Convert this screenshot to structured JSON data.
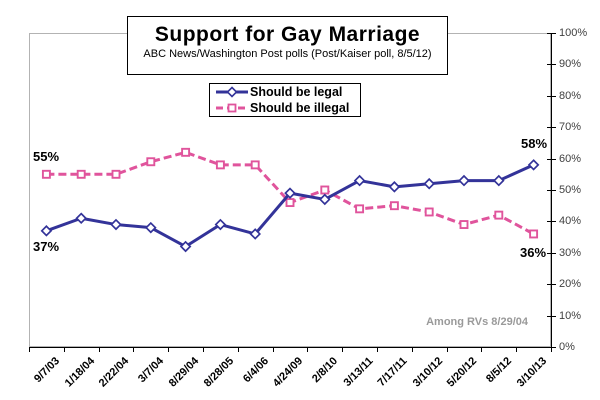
{
  "chart": {
    "title": "Support for Gay Marriage",
    "subtitle": "ABC News/Washington Post polls (Post/Kaiser poll, 8/5/12)"
  },
  "watermark": "Among RVs 8/29/04",
  "annotations": {
    "illegal_start": "55%",
    "legal_start": "37%",
    "legal_end": "58%",
    "illegal_end": "36%"
  },
  "chart_data": {
    "type": "line",
    "title": "Support for Gay Marriage",
    "subtitle": "ABC News/Washington Post polls (Post/Kaiser poll, 8/5/12)",
    "categories": [
      "9/7/03",
      "1/18/04",
      "2/22/04",
      "3/7/04",
      "8/29/04",
      "8/28/05",
      "6/4/06",
      "4/24/09",
      "2/8/10",
      "3/13/11",
      "7/17/11",
      "3/10/12",
      "5/20/12",
      "8/5/12",
      "3/10/13"
    ],
    "series": [
      {
        "name": "Should be legal",
        "color": "#333399",
        "marker": "diamond",
        "dashed": false,
        "values": [
          37,
          41,
          39,
          38,
          32,
          39,
          36,
          49,
          47,
          53,
          51,
          52,
          53,
          53,
          58
        ]
      },
      {
        "name": "Should be illegal",
        "color": "#E0549C",
        "marker": "square",
        "dashed": true,
        "values": [
          55,
          55,
          55,
          59,
          62,
          58,
          58,
          46,
          50,
          44,
          45,
          43,
          39,
          42,
          36
        ]
      }
    ],
    "y_ticks": [
      "0%",
      "10%",
      "20%",
      "30%",
      "40%",
      "50%",
      "60%",
      "70%",
      "80%",
      "90%",
      "100%"
    ],
    "ylim": [
      0,
      100
    ],
    "y_axis_side": "right",
    "grid": false,
    "legend_position": "top-center",
    "annotations": [
      {
        "text": "55%",
        "series": "Should be illegal",
        "point": "first"
      },
      {
        "text": "37%",
        "series": "Should be legal",
        "point": "first"
      },
      {
        "text": "58%",
        "series": "Should be legal",
        "point": "last"
      },
      {
        "text": "36%",
        "series": "Should be illegal",
        "point": "last"
      }
    ],
    "note": "Among RVs 8/29/04"
  }
}
